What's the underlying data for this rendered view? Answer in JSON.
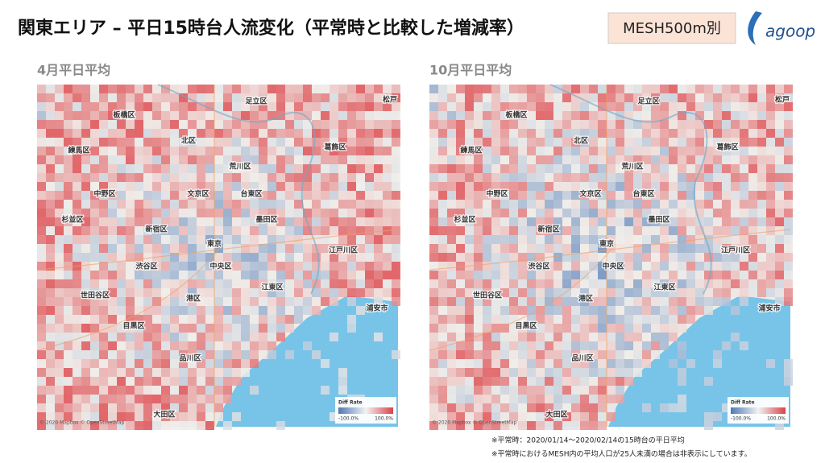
{
  "header": {
    "title": "関東エリア – 平日15時台人流変化（平常時と比較した増減率）",
    "badge": "MESH500m別",
    "logo": "agoop"
  },
  "panels": [
    {
      "title": "4月平日平均",
      "labels": [
        "足立区",
        "松戸",
        "板橋区",
        "北区",
        "練馬区",
        "葛飾区",
        "荒川区",
        "文京区",
        "台東区",
        "中野区",
        "墨田区",
        "杉並区",
        "新宿区",
        "東京",
        "江戸川区",
        "渋谷区",
        "中央区",
        "江東区",
        "世田谷区",
        "港区",
        "浦安市",
        "目黒区",
        "品川区",
        "大田区"
      ],
      "legend": {
        "title": "Diff Rate",
        "min": "-100.0%",
        "max": "100.0%"
      },
      "attribution": "© 2020 Mapbox © OpenStreetMap"
    },
    {
      "title": "10月平日平均",
      "labels": [
        "足立区",
        "松戸",
        "板橋区",
        "北区",
        "練馬区",
        "葛飾区",
        "荒川区",
        "文京区",
        "台東区",
        "中野区",
        "墨田区",
        "杉並区",
        "新宿区",
        "東京",
        "江戸川区",
        "渋谷区",
        "中央区",
        "江東区",
        "世田谷区",
        "港区",
        "浦安市",
        "目黒区",
        "品川区",
        "大田区"
      ],
      "legend": {
        "title": "Diff Rate",
        "min": "-100.0%",
        "max": "100.0%"
      },
      "attribution": "© 2020 Mapbox © OpenStreetMap"
    }
  ],
  "footnotes": [
    "※平常時：2020/01/14～2020/02/14の15時台の平日平均",
    "※平常時におけるMESH内の平均人口が25人未満の場合は非表示にしています。"
  ]
}
